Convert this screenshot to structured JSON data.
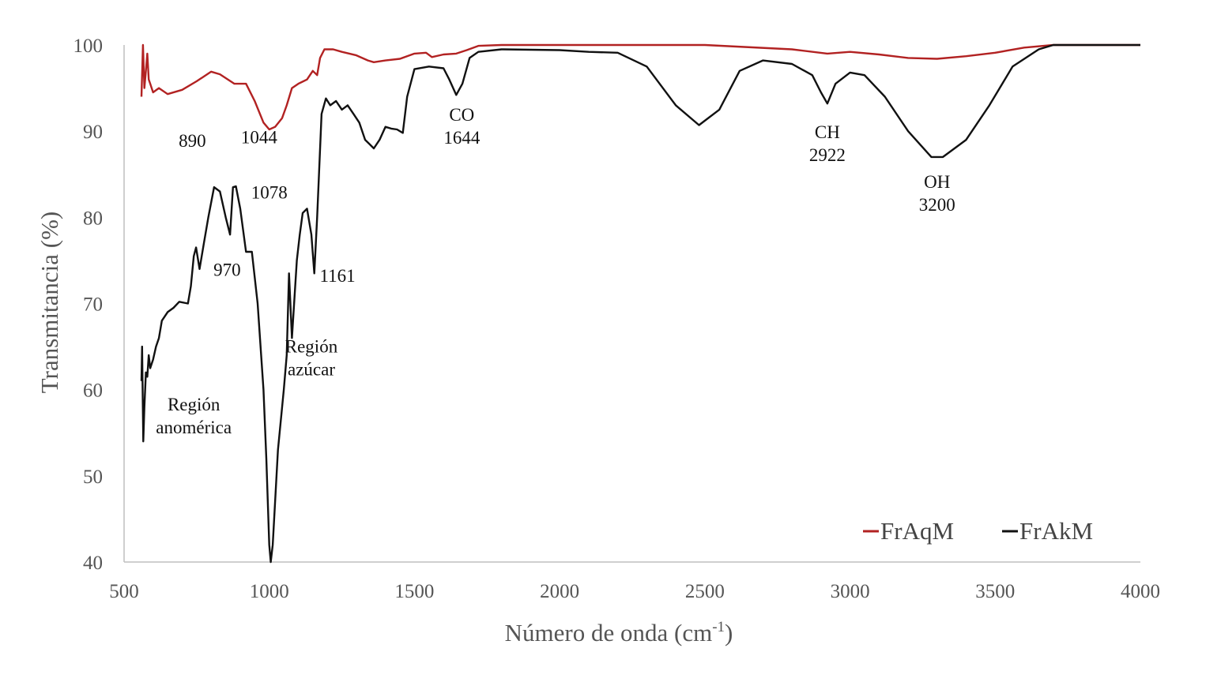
{
  "chart_data": {
    "type": "line",
    "xlabel": "Número de onda (cm",
    "xlabel_sup": "-1",
    "xlabel_close": ")",
    "ylabel": "Transmitancia (%)",
    "xlim": [
      500,
      4000
    ],
    "ylim": [
      40,
      100
    ],
    "xticks": [
      500,
      1000,
      1500,
      2000,
      2500,
      3000,
      3500,
      4000
    ],
    "yticks": [
      40,
      50,
      60,
      70,
      80,
      90,
      100
    ],
    "grid": false,
    "legend_position": "bottom-right",
    "series": [
      {
        "name": "FrAqM",
        "color": "#b22222",
        "points": [
          [
            560,
            94
          ],
          [
            565,
            100
          ],
          [
            570,
            95
          ],
          [
            575,
            97
          ],
          [
            580,
            99
          ],
          [
            585,
            96
          ],
          [
            590,
            95.5
          ],
          [
            600,
            94.5
          ],
          [
            620,
            95
          ],
          [
            650,
            94.3
          ],
          [
            700,
            94.8
          ],
          [
            750,
            95.8
          ],
          [
            800,
            96.9
          ],
          [
            830,
            96.6
          ],
          [
            880,
            95.5
          ],
          [
            920,
            95.5
          ],
          [
            950,
            93.5
          ],
          [
            980,
            91
          ],
          [
            1000,
            90.2
          ],
          [
            1020,
            90.5
          ],
          [
            1044,
            91.5
          ],
          [
            1060,
            93
          ],
          [
            1078,
            95
          ],
          [
            1100,
            95.5
          ],
          [
            1130,
            96
          ],
          [
            1150,
            97
          ],
          [
            1165,
            96.5
          ],
          [
            1175,
            98.5
          ],
          [
            1190,
            99.5
          ],
          [
            1220,
            99.5
          ],
          [
            1250,
            99.2
          ],
          [
            1300,
            98.8
          ],
          [
            1340,
            98.2
          ],
          [
            1360,
            98
          ],
          [
            1400,
            98.2
          ],
          [
            1450,
            98.4
          ],
          [
            1500,
            99
          ],
          [
            1540,
            99.1
          ],
          [
            1560,
            98.6
          ],
          [
            1600,
            98.9
          ],
          [
            1644,
            99
          ],
          [
            1680,
            99.4
          ],
          [
            1720,
            99.9
          ],
          [
            1800,
            100
          ],
          [
            2000,
            100
          ],
          [
            2500,
            100
          ],
          [
            2800,
            99.5
          ],
          [
            2922,
            99
          ],
          [
            3000,
            99.2
          ],
          [
            3100,
            98.9
          ],
          [
            3200,
            98.5
          ],
          [
            3300,
            98.4
          ],
          [
            3400,
            98.7
          ],
          [
            3500,
            99.1
          ],
          [
            3600,
            99.7
          ],
          [
            3700,
            100
          ],
          [
            4000,
            100
          ]
        ]
      },
      {
        "name": "FrAkM",
        "color": "#111111",
        "points": [
          [
            560,
            61
          ],
          [
            562,
            65
          ],
          [
            566,
            54
          ],
          [
            570,
            58
          ],
          [
            575,
            62
          ],
          [
            580,
            61.5
          ],
          [
            585,
            64
          ],
          [
            590,
            62.5
          ],
          [
            600,
            63.5
          ],
          [
            610,
            65
          ],
          [
            620,
            66
          ],
          [
            630,
            68
          ],
          [
            650,
            69
          ],
          [
            670,
            69.5
          ],
          [
            690,
            70.2
          ],
          [
            720,
            70
          ],
          [
            730,
            72
          ],
          [
            740,
            75.5
          ],
          [
            748,
            76.5
          ],
          [
            760,
            74
          ],
          [
            775,
            77
          ],
          [
            790,
            80
          ],
          [
            810,
            83.5
          ],
          [
            830,
            83
          ],
          [
            850,
            80
          ],
          [
            865,
            78
          ],
          [
            875,
            83.5
          ],
          [
            885,
            83.6
          ],
          [
            900,
            81
          ],
          [
            920,
            76
          ],
          [
            940,
            76
          ],
          [
            960,
            70
          ],
          [
            980,
            60
          ],
          [
            990,
            52
          ],
          [
            1000,
            42
          ],
          [
            1005,
            40
          ],
          [
            1012,
            42
          ],
          [
            1030,
            53
          ],
          [
            1050,
            60
          ],
          [
            1060,
            64
          ],
          [
            1068,
            73.5
          ],
          [
            1078,
            66
          ],
          [
            1095,
            75
          ],
          [
            1105,
            78
          ],
          [
            1115,
            80.5
          ],
          [
            1130,
            81
          ],
          [
            1145,
            78
          ],
          [
            1155,
            73.5
          ],
          [
            1165,
            80
          ],
          [
            1180,
            92
          ],
          [
            1195,
            93.8
          ],
          [
            1210,
            93
          ],
          [
            1230,
            93.5
          ],
          [
            1250,
            92.5
          ],
          [
            1270,
            93
          ],
          [
            1290,
            92
          ],
          [
            1310,
            91
          ],
          [
            1330,
            89
          ],
          [
            1345,
            88.5
          ],
          [
            1360,
            88
          ],
          [
            1380,
            89
          ],
          [
            1400,
            90.5
          ],
          [
            1420,
            90.3
          ],
          [
            1440,
            90.2
          ],
          [
            1460,
            89.8
          ],
          [
            1475,
            94
          ],
          [
            1500,
            97.2
          ],
          [
            1550,
            97.5
          ],
          [
            1600,
            97.3
          ],
          [
            1620,
            96
          ],
          [
            1644,
            94.2
          ],
          [
            1665,
            95.5
          ],
          [
            1690,
            98.5
          ],
          [
            1720,
            99.2
          ],
          [
            1800,
            99.5
          ],
          [
            2000,
            99.4
          ],
          [
            2100,
            99.2
          ],
          [
            2200,
            99.1
          ],
          [
            2300,
            97.5
          ],
          [
            2400,
            93
          ],
          [
            2480,
            90.7
          ],
          [
            2550,
            92.5
          ],
          [
            2620,
            97
          ],
          [
            2700,
            98.2
          ],
          [
            2800,
            97.8
          ],
          [
            2870,
            96.5
          ],
          [
            2900,
            94.5
          ],
          [
            2922,
            93.2
          ],
          [
            2950,
            95.5
          ],
          [
            3000,
            96.8
          ],
          [
            3050,
            96.5
          ],
          [
            3120,
            94
          ],
          [
            3200,
            90
          ],
          [
            3280,
            87
          ],
          [
            3320,
            87
          ],
          [
            3400,
            89
          ],
          [
            3480,
            93
          ],
          [
            3560,
            97.5
          ],
          [
            3650,
            99.5
          ],
          [
            3700,
            100
          ],
          [
            4000,
            100
          ]
        ]
      }
    ],
    "annotations": [
      {
        "lines": [
          "890"
        ],
        "x": 735,
        "y": 88.2
      },
      {
        "lines": [
          "1044"
        ],
        "x": 965,
        "y": 88.6
      },
      {
        "lines": [
          "1078"
        ],
        "x": 1000,
        "y": 82.2
      },
      {
        "lines": [
          "970"
        ],
        "x": 855,
        "y": 73.2
      },
      {
        "lines": [
          "1161"
        ],
        "x": 1235,
        "y": 72.5
      },
      {
        "lines": [
          "CO",
          "1644"
        ],
        "x": 1663,
        "y": 91.2
      },
      {
        "lines": [
          "CH",
          "2922"
        ],
        "x": 2922,
        "y": 89.2
      },
      {
        "lines": [
          "OH",
          "3200"
        ],
        "x": 3300,
        "y": 83.4
      },
      {
        "lines": [
          "Región",
          "azúcar"
        ],
        "x": 1145,
        "y": 64.3
      },
      {
        "lines": [
          "Región",
          "anomérica"
        ],
        "x": 740,
        "y": 57.6
      }
    ]
  }
}
